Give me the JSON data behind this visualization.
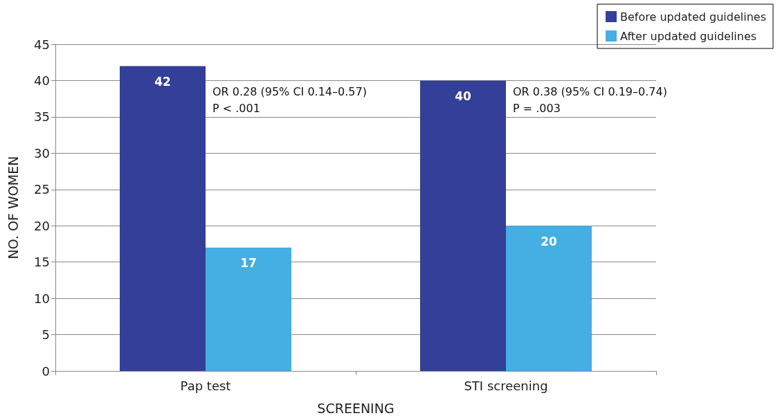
{
  "chart_data": {
    "type": "bar",
    "xlabel": "SCREENING",
    "ylabel": "NO. OF WOMEN",
    "categories": [
      "Pap test",
      "STI screening"
    ],
    "series": [
      {
        "name": "Before updated guidelines",
        "color": "#343f98",
        "values": [
          42,
          40
        ]
      },
      {
        "name": "After updated guidelines",
        "color": "#45aee3",
        "values": [
          17,
          20
        ]
      }
    ],
    "ylim": [
      0,
      45
    ],
    "yticks": [
      0,
      5,
      10,
      15,
      20,
      25,
      30,
      35,
      40,
      45
    ],
    "grid": "y",
    "legend": "top right",
    "data_labels": true,
    "annotations": [
      "OR 0.28 (95% CI 0.14–0.57)\nP < .001",
      "OR 0.38 (95% CI 0.19–0.74)\nP = .003"
    ]
  }
}
